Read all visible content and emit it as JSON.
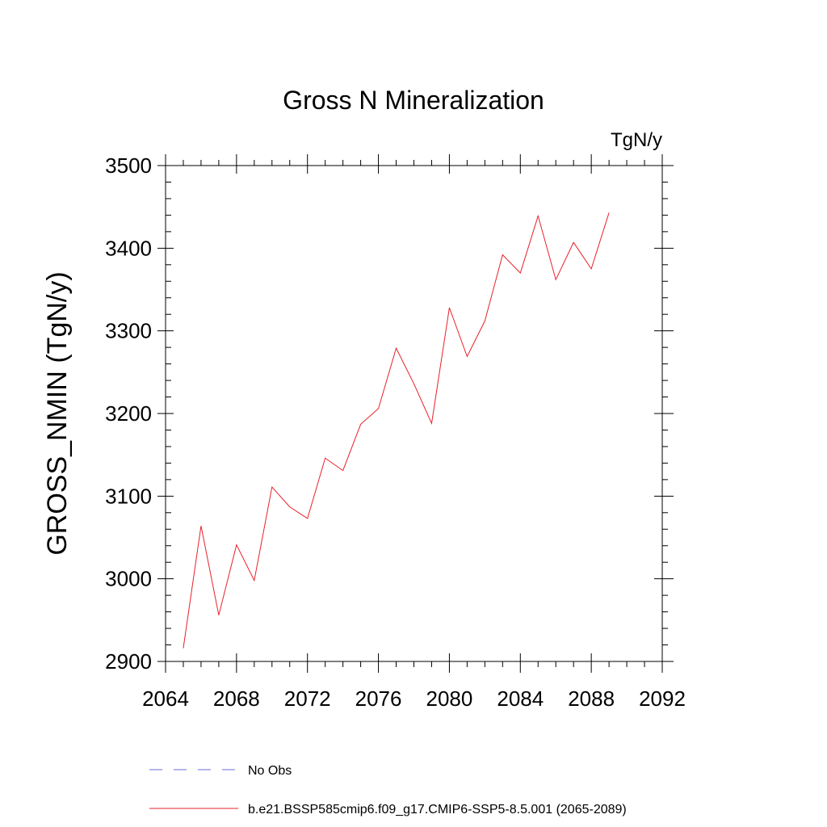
{
  "chart_data": {
    "type": "line",
    "title": "Gross N Mineralization",
    "units_label": "TgN/y",
    "xlabel": "",
    "ylabel": "GROSS_NMIN  (TgN/y)",
    "xlim": [
      2064,
      2092
    ],
    "ylim": [
      2900,
      3500
    ],
    "x_ticks": [
      2064,
      2068,
      2072,
      2076,
      2080,
      2084,
      2088,
      2092
    ],
    "y_ticks": [
      2900,
      3000,
      3100,
      3200,
      3300,
      3400,
      3500
    ],
    "x_tick_labels": [
      "2064",
      "2068",
      "2072",
      "2076",
      "2080",
      "2084",
      "2088",
      "2092"
    ],
    "y_tick_labels": [
      "2900",
      "3000",
      "3100",
      "3200",
      "3300",
      "3400",
      "3500"
    ],
    "grid": false,
    "legend_position": "bottom",
    "series": [
      {
        "name": "No Obs",
        "color": "#6b6bd6",
        "style": "dashed",
        "x": [],
        "values": []
      },
      {
        "name": "b.e21.BSSP585cmip6.f09_g17.CMIP6-SSP5-8.5.001 (2065-2089)",
        "color": "#e8202a",
        "style": "solid",
        "x": [
          2065,
          2066,
          2067,
          2068,
          2069,
          2070,
          2071,
          2072,
          2073,
          2074,
          2075,
          2076,
          2077,
          2078,
          2079,
          2080,
          2081,
          2082,
          2083,
          2084,
          2085,
          2086,
          2087,
          2088,
          2089
        ],
        "values": [
          2916,
          3064,
          2956,
          3041,
          2998,
          3111,
          3087,
          3073,
          3146,
          3131,
          3187,
          3206,
          3279,
          3236,
          3188,
          3328,
          3269,
          3312,
          3392,
          3370,
          3439,
          3362,
          3407,
          3375,
          3443
        ]
      }
    ]
  }
}
